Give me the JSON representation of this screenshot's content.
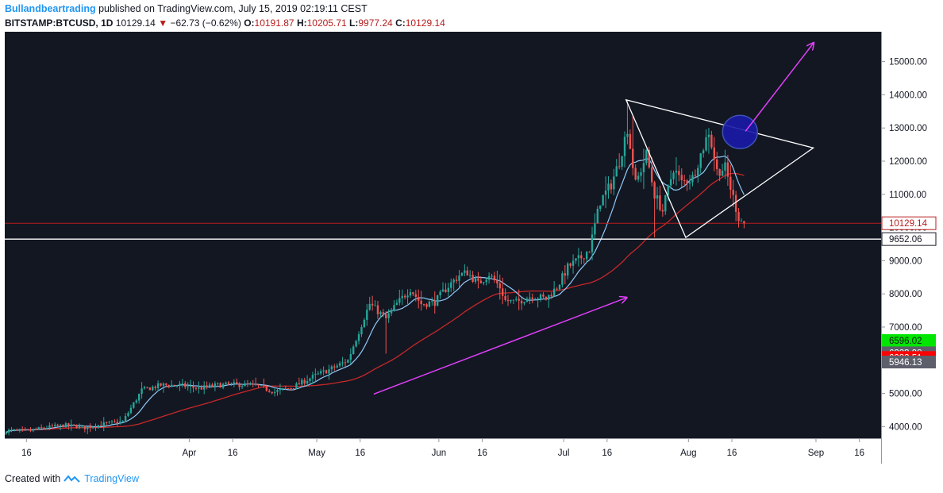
{
  "header": {
    "author": "Bullandbeartrading",
    "published_text": "published on TradingView.com, July 15, 2019 02:19:11 CEST",
    "symbol": "BITSTAMP:BTCUSD, 1D",
    "last": "10129.14",
    "change": "−62.73 (−0.62%)",
    "o_label": "O:",
    "o_value": "10191.87",
    "h_label": "H:",
    "h_value": "10205.71",
    "l_label": "L:",
    "l_value": "9977.24",
    "c_label": "C:",
    "c_value": "10129.14"
  },
  "footer": {
    "created_with": "Created with",
    "brand": "TradingView"
  },
  "chart_data": {
    "type": "candlestick",
    "y_ticks": [
      "15000.00",
      "14000.00",
      "13000.00",
      "12000.00",
      "11000.00",
      "10000.00",
      "9000.00",
      "8000.00",
      "7000.00",
      "5000.00",
      "4000.00"
    ],
    "x_ticks": [
      "16",
      "Apr",
      "16",
      "May",
      "16",
      "Jun",
      "16",
      "Jul",
      "16",
      "Aug",
      "16",
      "Sep",
      "16"
    ],
    "ylim": [
      3650,
      15900
    ],
    "price_labels": [
      {
        "text": "10129.14",
        "value": 10129.14,
        "style": "outline-red"
      },
      {
        "text": "9652.06",
        "value": 9652.06,
        "style": "outline-black"
      },
      {
        "text": "6596.02",
        "value": 6596.02,
        "style": "fill-green"
      },
      {
        "text": "6223.98",
        "value": 6223.98,
        "style": "fill-gray"
      },
      {
        "text": "6082.51",
        "value": 6082.51,
        "style": "fill-red"
      },
      {
        "text": "5946.13",
        "value": 5946.13,
        "style": "fill-gray"
      }
    ],
    "horizontal_lines": [
      {
        "value": 10129.14,
        "color": "#b71c1c"
      },
      {
        "value": 9652.06,
        "color": "#ffffff"
      }
    ],
    "colors": {
      "background": "#131722",
      "up": "#26a69a",
      "down": "#ef5350",
      "fast_ma": "#90caf9",
      "slow_ma": "#c62828",
      "annotation": "#e040fb",
      "triangle": "#ffffff",
      "circle_fill": "#1a1aa8",
      "circle_stroke": "#3f51b5"
    },
    "keypoints": [
      [
        0,
        3880
      ],
      [
        8,
        3870
      ],
      [
        15,
        3980
      ],
      [
        22,
        4040
      ],
      [
        29,
        3970
      ],
      [
        36,
        4080
      ],
      [
        43,
        4150
      ],
      [
        50,
        5100
      ],
      [
        57,
        5250
      ],
      [
        64,
        5250
      ],
      [
        71,
        5150
      ],
      [
        78,
        5250
      ],
      [
        85,
        5270
      ],
      [
        92,
        5230
      ],
      [
        99,
        5050
      ],
      [
        106,
        5200
      ],
      [
        113,
        5500
      ],
      [
        120,
        5750
      ],
      [
        126,
        6000
      ],
      [
        132,
        7300
      ],
      [
        134,
        7700
      ],
      [
        138,
        7400
      ],
      [
        140,
        7250
      ],
      [
        144,
        7700
      ],
      [
        149,
        8150
      ],
      [
        153,
        7700
      ],
      [
        158,
        7750
      ],
      [
        162,
        8150
      ],
      [
        167,
        8560
      ],
      [
        170,
        8650
      ],
      [
        174,
        8300
      ],
      [
        178,
        8600
      ],
      [
        182,
        8200
      ],
      [
        184,
        7800
      ],
      [
        188,
        7750
      ],
      [
        194,
        7950
      ],
      [
        199,
        7850
      ],
      [
        203,
        8200
      ],
      [
        207,
        8800
      ],
      [
        212,
        9100
      ],
      [
        215,
        9350
      ],
      [
        219,
        10800
      ],
      [
        223,
        11300
      ],
      [
        226,
        12000
      ],
      [
        229,
        13000
      ],
      [
        232,
        11300
      ],
      [
        236,
        12200
      ],
      [
        239,
        11000
      ],
      [
        242,
        10500
      ],
      [
        246,
        11800
      ],
      [
        249,
        11350
      ],
      [
        253,
        11500
      ],
      [
        256,
        12200
      ],
      [
        259,
        12900
      ],
      [
        262,
        11700
      ],
      [
        265,
        11800
      ],
      [
        268,
        10900
      ],
      [
        270,
        10300
      ],
      [
        272,
        10129
      ]
    ],
    "annotations": {
      "triangle": [
        [
          14000,
          13850
        ],
        [
          46050,
          10150
        ],
        [
          46050,
          9700
        ]
      ],
      "arrows": [
        {
          "from": [
            40,
            5450
          ],
          "to": [
            229,
            8200
          ]
        },
        {
          "from": [
            279,
            12700
          ],
          "to": [
            296,
            15600
          ]
        }
      ],
      "circle": {
        "x": 271,
        "y": 12880,
        "rx": 12,
        "ry": 480
      }
    }
  }
}
